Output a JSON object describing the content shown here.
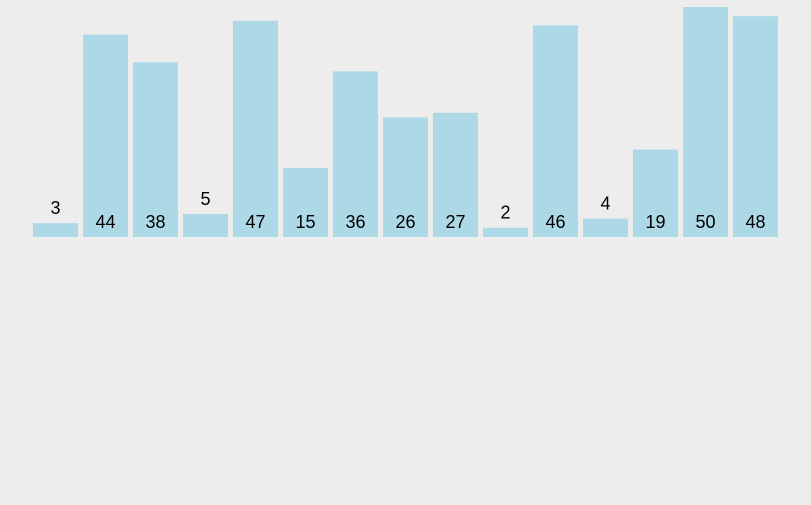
{
  "chart_data": {
    "type": "bar",
    "values": [
      3,
      44,
      38,
      5,
      47,
      15,
      36,
      26,
      27,
      2,
      46,
      4,
      19,
      50,
      48
    ],
    "data_labels": [
      "3",
      "44",
      "38",
      "5",
      "47",
      "15",
      "36",
      "26",
      "27",
      "2",
      "46",
      "4",
      "19",
      "50",
      "48"
    ],
    "ylim": [
      0,
      50
    ],
    "grid": false,
    "bar_color": "#add8e6",
    "background": "#ededed",
    "label_color": "#000000"
  }
}
